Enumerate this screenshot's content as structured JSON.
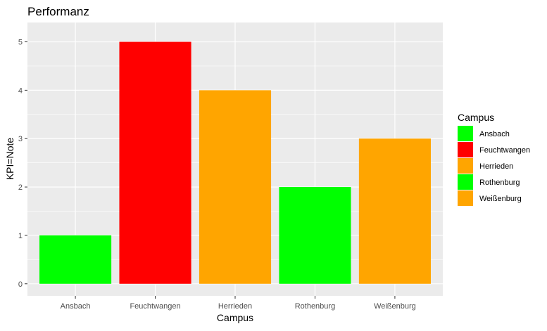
{
  "chart_data": {
    "type": "bar",
    "title": "Performanz",
    "xlabel": "Campus",
    "ylabel": "KPI=Note",
    "categories": [
      "Ansbach",
      "Feuchtwangen",
      "Herrieden",
      "Rothenburg",
      "Weißenburg"
    ],
    "values": [
      1,
      5,
      4,
      2,
      3
    ],
    "colors": [
      "#00ff00",
      "#ff0000",
      "#ffa500",
      "#00ff00",
      "#ffa500"
    ],
    "ylim": [
      -0.25,
      5.4
    ],
    "yticks": [
      0,
      1,
      2,
      3,
      4,
      5
    ],
    "grid": true,
    "background": "#ebebeb",
    "legend": {
      "title": "Campus",
      "position": "right",
      "entries": [
        {
          "label": "Ansbach",
          "color": "#00ff00"
        },
        {
          "label": "Feuchtwangen",
          "color": "#ff0000"
        },
        {
          "label": "Herrieden",
          "color": "#ffa500"
        },
        {
          "label": "Rothenburg",
          "color": "#00ff00"
        },
        {
          "label": "Weißenburg",
          "color": "#ffa500"
        }
      ]
    }
  }
}
